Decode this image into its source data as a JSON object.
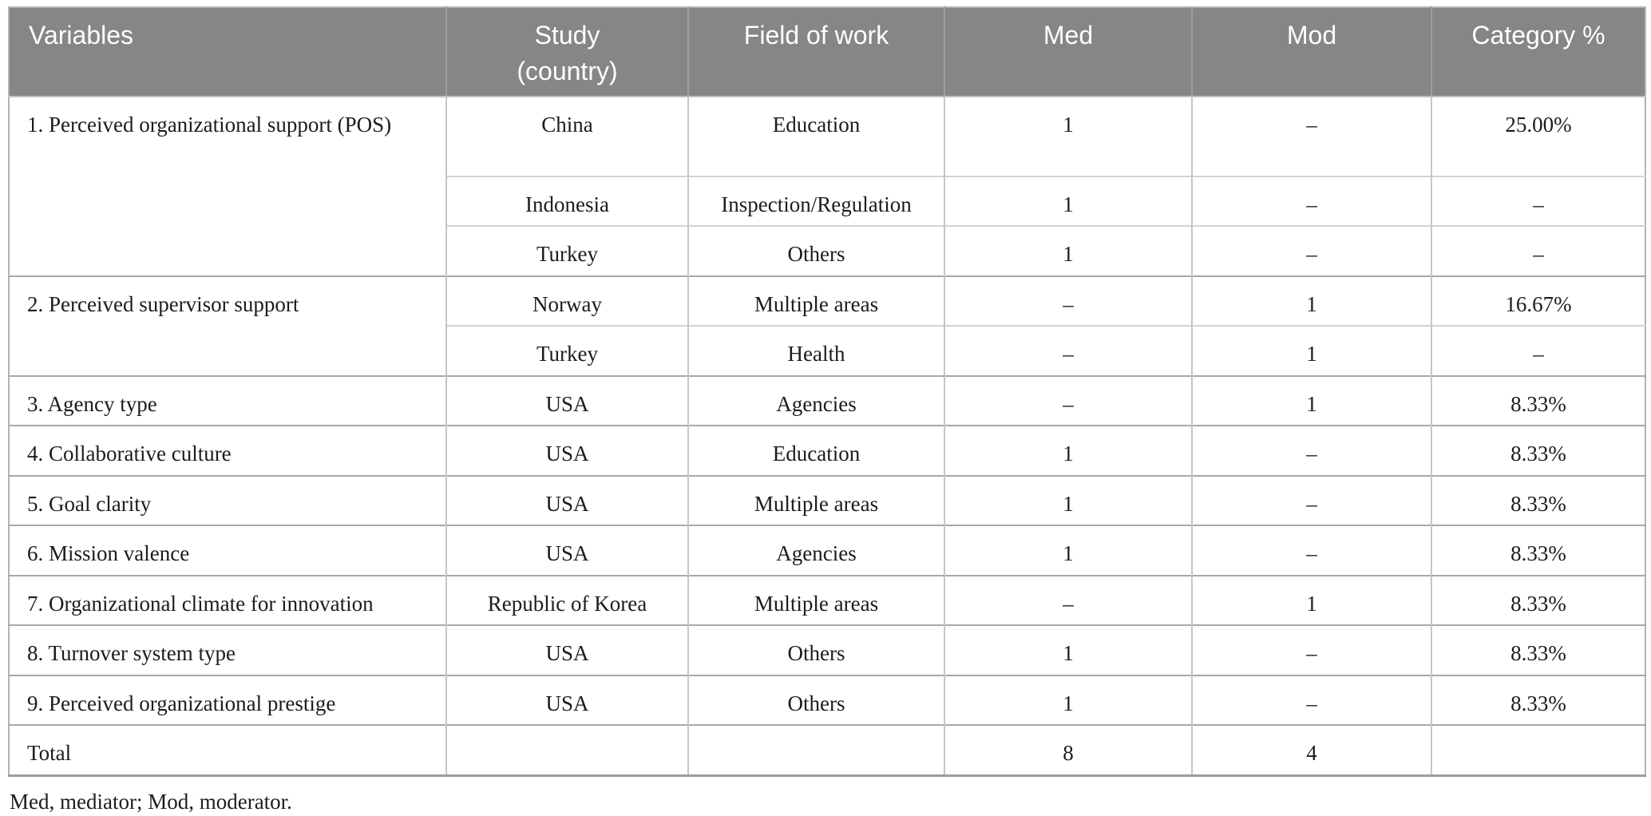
{
  "table": {
    "headers": [
      "Variables",
      "Study (country)",
      "Field of work",
      "Med",
      "Mod",
      "Category %"
    ],
    "groups": [
      {
        "variable": "1. Perceived organizational support (POS)",
        "entries": [
          {
            "study": "China",
            "field": "Education",
            "med": "1",
            "mod": "–",
            "category": "25.00%"
          },
          {
            "study": "Indonesia",
            "field": "Inspection/Regulation",
            "med": "1",
            "mod": "–",
            "category": "–"
          },
          {
            "study": "Turkey",
            "field": "Others",
            "med": "1",
            "mod": "–",
            "category": "–"
          }
        ]
      },
      {
        "variable": "2. Perceived supervisor support",
        "entries": [
          {
            "study": "Norway",
            "field": "Multiple areas",
            "med": "–",
            "mod": "1",
            "category": "16.67%"
          },
          {
            "study": "Turkey",
            "field": "Health",
            "med": "–",
            "mod": "1",
            "category": "–"
          }
        ]
      },
      {
        "variable": "3. Agency type",
        "entries": [
          {
            "study": "USA",
            "field": "Agencies",
            "med": "–",
            "mod": "1",
            "category": "8.33%"
          }
        ]
      },
      {
        "variable": "4. Collaborative culture",
        "entries": [
          {
            "study": "USA",
            "field": "Education",
            "med": "1",
            "mod": "–",
            "category": "8.33%"
          }
        ]
      },
      {
        "variable": "5. Goal clarity",
        "entries": [
          {
            "study": "USA",
            "field": "Multiple areas",
            "med": "1",
            "mod": "–",
            "category": "8.33%"
          }
        ]
      },
      {
        "variable": "6. Mission valence",
        "entries": [
          {
            "study": "USA",
            "field": "Agencies",
            "med": "1",
            "mod": "–",
            "category": "8.33%"
          }
        ]
      },
      {
        "variable": "7. Organizational climate for innovation",
        "entries": [
          {
            "study": "Republic of Korea",
            "field": "Multiple areas",
            "med": "–",
            "mod": "1",
            "category": "8.33%"
          }
        ]
      },
      {
        "variable": "8. Turnover system type",
        "entries": [
          {
            "study": "USA",
            "field": "Others",
            "med": "1",
            "mod": "–",
            "category": "8.33%"
          }
        ]
      },
      {
        "variable": "9. Perceived organizational prestige",
        "entries": [
          {
            "study": "USA",
            "field": "Others",
            "med": "1",
            "mod": "–",
            "category": "8.33%"
          }
        ]
      }
    ],
    "total": {
      "label": "Total",
      "study": "",
      "field": "",
      "med": "8",
      "mod": "4",
      "category": ""
    }
  },
  "footnote": "Med, mediator; Mod, moderator.",
  "colors": {
    "header_background": "#868686",
    "header_text": "#ffffff",
    "body_text": "#1c1c1c",
    "grid_border": "#c6c6c6",
    "group_border": "#a8a8a8"
  }
}
